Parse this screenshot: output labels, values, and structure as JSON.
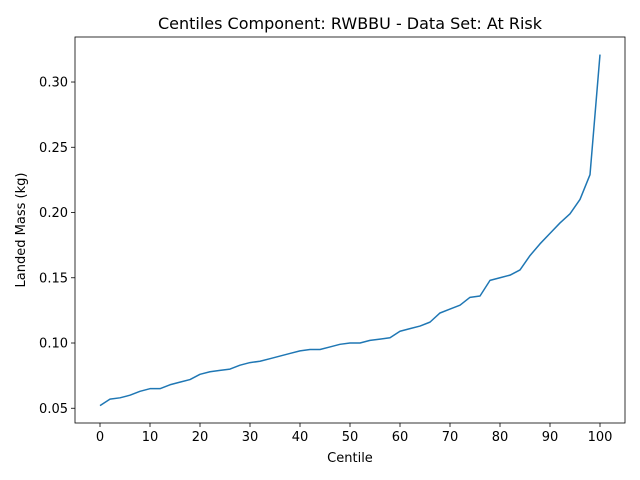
{
  "chart_data": {
    "type": "line",
    "title": "Centiles Component: RWBBU - Data Set: At Risk",
    "xlabel": "Centile",
    "ylabel": "Landed Mass (kg)",
    "xlim": [
      -5,
      105
    ],
    "ylim": [
      0.0387,
      0.3345
    ],
    "xticks": [
      "0",
      "10",
      "20",
      "30",
      "40",
      "50",
      "60",
      "70",
      "80",
      "90",
      "100"
    ],
    "yticks": [
      "0.05",
      "0.10",
      "0.15",
      "0.20",
      "0.25",
      "0.30"
    ],
    "grid": false,
    "line_color": "#1f77b4",
    "series": [
      {
        "x": [
          0,
          2,
          4,
          6,
          8,
          10,
          12,
          14,
          16,
          18,
          20,
          22,
          24,
          26,
          28,
          30,
          32,
          34,
          36,
          38,
          40,
          42,
          44,
          46,
          48,
          50,
          52,
          54,
          56,
          58,
          60,
          62,
          64,
          66,
          68,
          70,
          72,
          74,
          76,
          78,
          80,
          82,
          84,
          86,
          88,
          90,
          92,
          94,
          96,
          98,
          100
        ],
        "values": [
          0.052,
          0.057,
          0.058,
          0.06,
          0.063,
          0.065,
          0.065,
          0.068,
          0.07,
          0.072,
          0.076,
          0.078,
          0.079,
          0.08,
          0.083,
          0.085,
          0.086,
          0.088,
          0.09,
          0.092,
          0.094,
          0.095,
          0.095,
          0.097,
          0.099,
          0.1,
          0.1,
          0.102,
          0.103,
          0.104,
          0.109,
          0.111,
          0.113,
          0.116,
          0.123,
          0.126,
          0.129,
          0.135,
          0.136,
          0.148,
          0.15,
          0.152,
          0.156,
          0.167,
          0.176,
          0.184,
          0.192,
          0.199,
          0.21,
          0.229,
          0.321
        ]
      }
    ]
  }
}
